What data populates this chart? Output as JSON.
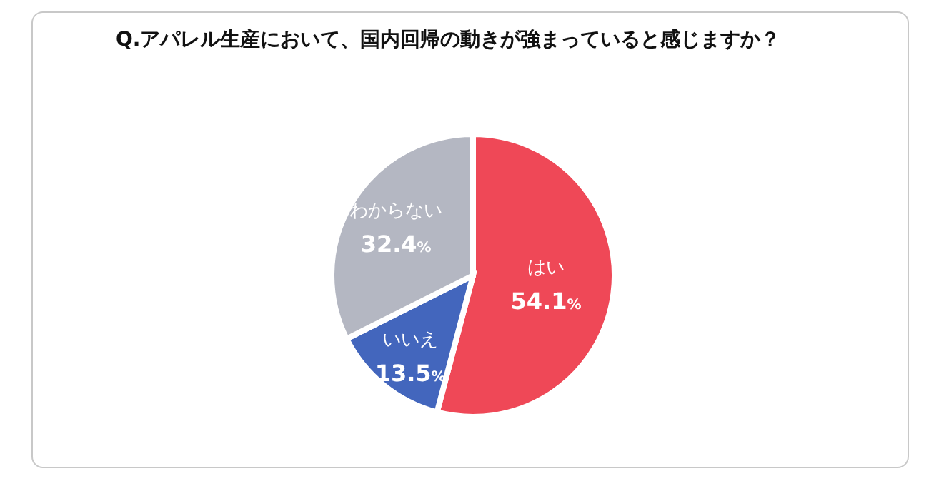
{
  "chart_data": {
    "type": "pie",
    "title": "Q.アパレル生産において、国内回帰の動きが強まっていると感じますか？",
    "categories": [
      "はい",
      "いいえ",
      "わからない"
    ],
    "values": [
      54.1,
      13.5,
      32.4
    ],
    "colors": [
      "#ef4857",
      "#4366bd",
      "#b4b7c2"
    ],
    "value_labels": [
      "54.1%",
      "13.5%",
      "32.4%"
    ]
  }
}
